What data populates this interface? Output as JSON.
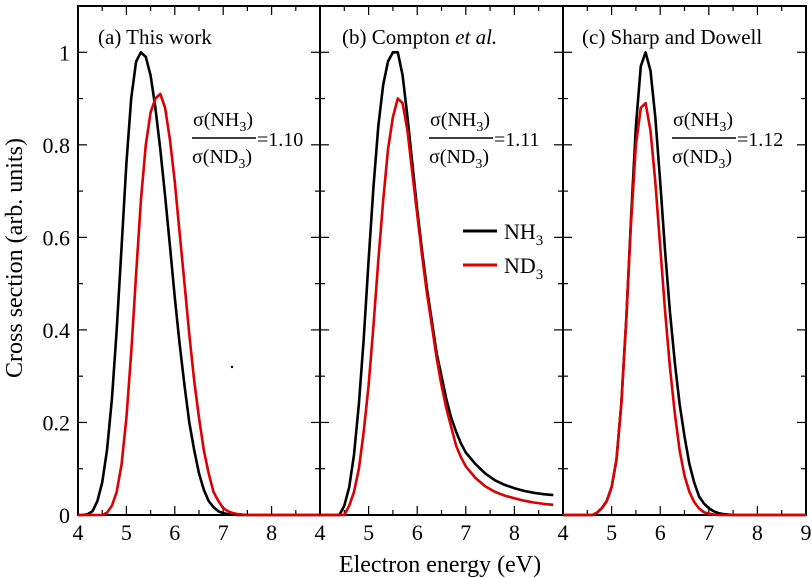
{
  "figure": {
    "xlabel": "Electron energy (eV)",
    "ylabel": "Cross section (arb. units)"
  },
  "legend": {
    "placement": "center-of-panel-b",
    "entries": [
      {
        "name": "NH",
        "sub": "3",
        "color": "#000000"
      },
      {
        "name": "ND",
        "sub": "3",
        "color": "#dd0000"
      }
    ]
  },
  "chart_data": [
    {
      "type": "line",
      "title": "(a) This work",
      "title_parts": {
        "lead": "(a) This work",
        "italic": "",
        "tail": ""
      },
      "ratio": {
        "num_main": "σ(NH",
        "num_sub": "3",
        "num_close": ")",
        "den_main": "σ(ND",
        "den_sub": "3",
        "den_close": ")",
        "value": "=1.10"
      },
      "xlim": [
        4,
        9
      ],
      "ylim": [
        0,
        1.1
      ],
      "xticks": [
        "4",
        "5",
        "6",
        "7",
        "8"
      ],
      "yticks": [
        "0",
        "0.2",
        "0.4",
        "0.6",
        "0.8",
        "1"
      ],
      "series": [
        {
          "name": "NH3",
          "color": "#000000",
          "x": [
            4.0,
            4.1,
            4.2,
            4.3,
            4.4,
            4.5,
            4.6,
            4.7,
            4.8,
            4.9,
            5.0,
            5.1,
            5.2,
            5.3,
            5.4,
            5.5,
            5.6,
            5.7,
            5.8,
            5.9,
            6.0,
            6.1,
            6.2,
            6.3,
            6.4,
            6.5,
            6.6,
            6.7,
            6.8,
            6.9,
            7.0,
            7.1,
            7.2,
            7.3,
            7.5,
            9.0
          ],
          "y": [
            0.0,
            0.0,
            0.002,
            0.008,
            0.03,
            0.07,
            0.14,
            0.25,
            0.4,
            0.58,
            0.76,
            0.9,
            0.98,
            1.0,
            0.99,
            0.95,
            0.88,
            0.79,
            0.69,
            0.58,
            0.47,
            0.37,
            0.28,
            0.2,
            0.14,
            0.09,
            0.055,
            0.03,
            0.017,
            0.008,
            0.004,
            0.002,
            0.001,
            0.0,
            0.0,
            0.0
          ]
        },
        {
          "name": "ND3",
          "color": "#dd0000",
          "x": [
            4.0,
            4.5,
            4.6,
            4.7,
            4.8,
            4.9,
            5.0,
            5.1,
            5.2,
            5.3,
            5.4,
            5.5,
            5.6,
            5.7,
            5.8,
            5.9,
            6.0,
            6.1,
            6.2,
            6.3,
            6.4,
            6.5,
            6.6,
            6.7,
            6.8,
            6.9,
            7.0,
            7.1,
            7.2,
            7.3,
            7.4,
            7.5,
            9.0
          ],
          "y": [
            0.0,
            0.0,
            0.005,
            0.02,
            0.05,
            0.11,
            0.21,
            0.35,
            0.52,
            0.68,
            0.8,
            0.87,
            0.9,
            0.91,
            0.88,
            0.81,
            0.72,
            0.61,
            0.5,
            0.39,
            0.29,
            0.21,
            0.14,
            0.09,
            0.05,
            0.03,
            0.015,
            0.008,
            0.004,
            0.002,
            0.001,
            0.0,
            0.0
          ]
        }
      ]
    },
    {
      "type": "line",
      "title": "(b) Compton et al.",
      "title_parts": {
        "lead": "(b) Compton ",
        "italic": "et al.",
        "tail": ""
      },
      "ratio": {
        "num_main": "σ(NH",
        "num_sub": "3",
        "num_close": ")",
        "den_main": "σ(ND",
        "den_sub": "3",
        "den_close": ")",
        "value": "=1.11"
      },
      "xlim": [
        4,
        9
      ],
      "ylim": [
        0,
        1.1
      ],
      "xticks": [
        "4",
        "5",
        "6",
        "7",
        "8"
      ],
      "yticks": [],
      "series": [
        {
          "name": "NH3",
          "color": "#000000",
          "x": [
            4.0,
            4.4,
            4.5,
            4.6,
            4.7,
            4.8,
            4.9,
            5.0,
            5.1,
            5.2,
            5.3,
            5.4,
            5.5,
            5.6,
            5.7,
            5.8,
            5.9,
            6.0,
            6.1,
            6.2,
            6.3,
            6.4,
            6.5,
            6.6,
            6.7,
            6.8,
            6.9,
            7.0,
            7.2,
            7.4,
            7.6,
            7.8,
            8.0,
            8.2,
            8.4,
            8.6,
            8.8
          ],
          "y": [
            0.0,
            0.0,
            0.02,
            0.06,
            0.13,
            0.24,
            0.38,
            0.55,
            0.71,
            0.84,
            0.93,
            0.98,
            1.0,
            1.0,
            0.95,
            0.86,
            0.76,
            0.66,
            0.57,
            0.49,
            0.42,
            0.35,
            0.3,
            0.25,
            0.21,
            0.18,
            0.155,
            0.135,
            0.11,
            0.09,
            0.075,
            0.065,
            0.058,
            0.052,
            0.048,
            0.045,
            0.043
          ]
        },
        {
          "name": "ND3",
          "color": "#dd0000",
          "x": [
            4.0,
            4.5,
            4.6,
            4.7,
            4.8,
            4.9,
            5.0,
            5.1,
            5.2,
            5.3,
            5.4,
            5.5,
            5.6,
            5.7,
            5.8,
            5.9,
            6.0,
            6.1,
            6.2,
            6.3,
            6.4,
            6.5,
            6.6,
            6.7,
            6.8,
            6.9,
            7.0,
            7.2,
            7.4,
            7.6,
            7.8,
            8.0,
            8.2,
            8.4,
            8.6,
            8.8
          ],
          "y": [
            0.0,
            0.0,
            0.02,
            0.05,
            0.1,
            0.18,
            0.28,
            0.41,
            0.55,
            0.68,
            0.79,
            0.86,
            0.9,
            0.89,
            0.83,
            0.74,
            0.65,
            0.56,
            0.48,
            0.41,
            0.34,
            0.28,
            0.23,
            0.19,
            0.15,
            0.125,
            0.105,
            0.08,
            0.062,
            0.05,
            0.042,
            0.036,
            0.031,
            0.027,
            0.024,
            0.022
          ]
        }
      ]
    },
    {
      "type": "line",
      "title": "(c) Sharp and Dowell",
      "title_parts": {
        "lead": "(c) Sharp and Dowell",
        "italic": "",
        "tail": ""
      },
      "ratio": {
        "num_main": "σ(NH",
        "num_sub": "3",
        "num_close": ")",
        "den_main": "σ(ND",
        "den_sub": "3",
        "den_close": ")",
        "value": "=1.12"
      },
      "xlim": [
        4,
        9
      ],
      "ylim": [
        0,
        1.1
      ],
      "xticks": [
        "4",
        "5",
        "6",
        "7",
        "8",
        "9"
      ],
      "yticks": [],
      "series": [
        {
          "name": "NH3",
          "color": "#000000",
          "x": [
            4.0,
            4.6,
            4.7,
            4.8,
            4.9,
            5.0,
            5.1,
            5.2,
            5.3,
            5.4,
            5.5,
            5.6,
            5.7,
            5.8,
            5.9,
            6.0,
            6.1,
            6.2,
            6.3,
            6.4,
            6.5,
            6.6,
            6.7,
            6.8,
            6.9,
            7.0,
            7.1,
            7.2,
            7.3,
            7.4,
            7.5,
            9.0
          ],
          "y": [
            0.0,
            0.0,
            0.005,
            0.015,
            0.03,
            0.06,
            0.12,
            0.24,
            0.42,
            0.64,
            0.84,
            0.97,
            1.0,
            0.96,
            0.86,
            0.72,
            0.57,
            0.44,
            0.33,
            0.24,
            0.17,
            0.11,
            0.07,
            0.04,
            0.025,
            0.015,
            0.008,
            0.004,
            0.002,
            0.001,
            0.0,
            0.0
          ]
        },
        {
          "name": "ND3",
          "color": "#dd0000",
          "x": [
            4.0,
            4.6,
            4.7,
            4.8,
            4.9,
            5.0,
            5.1,
            5.2,
            5.3,
            5.4,
            5.5,
            5.6,
            5.7,
            5.8,
            5.9,
            6.0,
            6.1,
            6.2,
            6.3,
            6.4,
            6.5,
            6.6,
            6.7,
            6.8,
            6.9,
            7.0,
            7.1,
            7.2,
            9.0
          ],
          "y": [
            0.0,
            0.0,
            0.005,
            0.015,
            0.03,
            0.06,
            0.12,
            0.24,
            0.42,
            0.63,
            0.8,
            0.88,
            0.89,
            0.83,
            0.72,
            0.58,
            0.44,
            0.32,
            0.22,
            0.14,
            0.085,
            0.05,
            0.028,
            0.014,
            0.006,
            0.003,
            0.001,
            0.0,
            0.0
          ]
        }
      ]
    }
  ]
}
